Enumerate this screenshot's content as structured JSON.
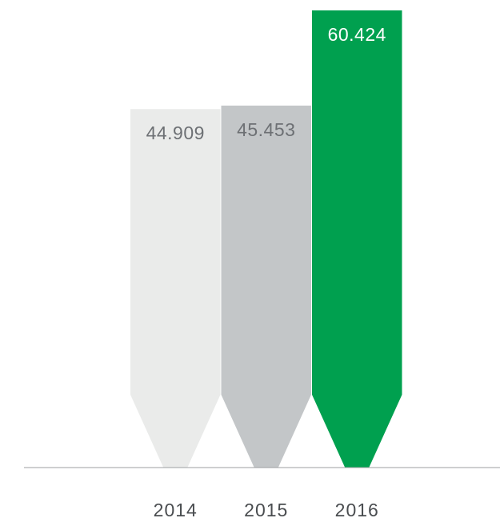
{
  "chart_data": {
    "type": "bar",
    "categories": [
      "2014",
      "2015",
      "2016"
    ],
    "values": [
      44909,
      45453,
      60424
    ],
    "value_labels": [
      "44.909",
      "45.453",
      "60.424"
    ],
    "colors": [
      "#eaebea",
      "#c3c6c8",
      "#00a04f"
    ],
    "label_colors": [
      "#6d7074",
      "#6d7074",
      "#ffffff"
    ],
    "axis_color": "#9c9fa2",
    "ylim": [
      0,
      60424
    ],
    "grid": false,
    "legend": "none"
  }
}
